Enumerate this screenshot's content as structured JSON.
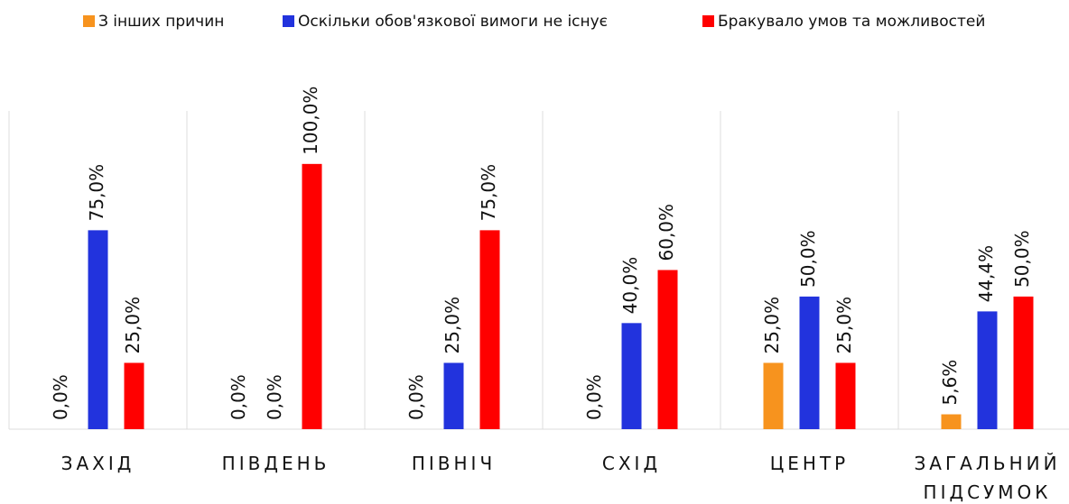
{
  "chart_data": {
    "type": "bar",
    "categories": [
      "ЗАХІД",
      "ПІВДЕНЬ",
      "ПІВНІЧ",
      "СХІД",
      "ЦЕНТР",
      "ЗАГАЛЬНИЙ ПІДСУМОК"
    ],
    "series": [
      {
        "name": "З інших причин",
        "color": "#f7931e",
        "values": [
          0,
          0,
          0,
          0,
          25,
          5.6
        ],
        "value_labels": [
          "0,0%",
          "0,0%",
          "0,0%",
          "0,0%",
          "25,0%",
          "5,6%"
        ]
      },
      {
        "name": "Оскільки обов'язкової вимоги не існує",
        "color": "#2233dd",
        "values": [
          75,
          0,
          25,
          40,
          50,
          44.4
        ],
        "value_labels": [
          "75,0%",
          "0,0%",
          "25,0%",
          "40,0%",
          "50,0%",
          "44,4%"
        ]
      },
      {
        "name": "Бракувало умов та можливостей",
        "color": "#ff0000",
        "values": [
          25,
          100,
          75,
          60,
          25,
          50
        ],
        "value_labels": [
          "25,0%",
          "100,0%",
          "75,0%",
          "60,0%",
          "25,0%",
          "50,0%"
        ]
      }
    ],
    "ylim": [
      0,
      120
    ],
    "legend": "top"
  }
}
